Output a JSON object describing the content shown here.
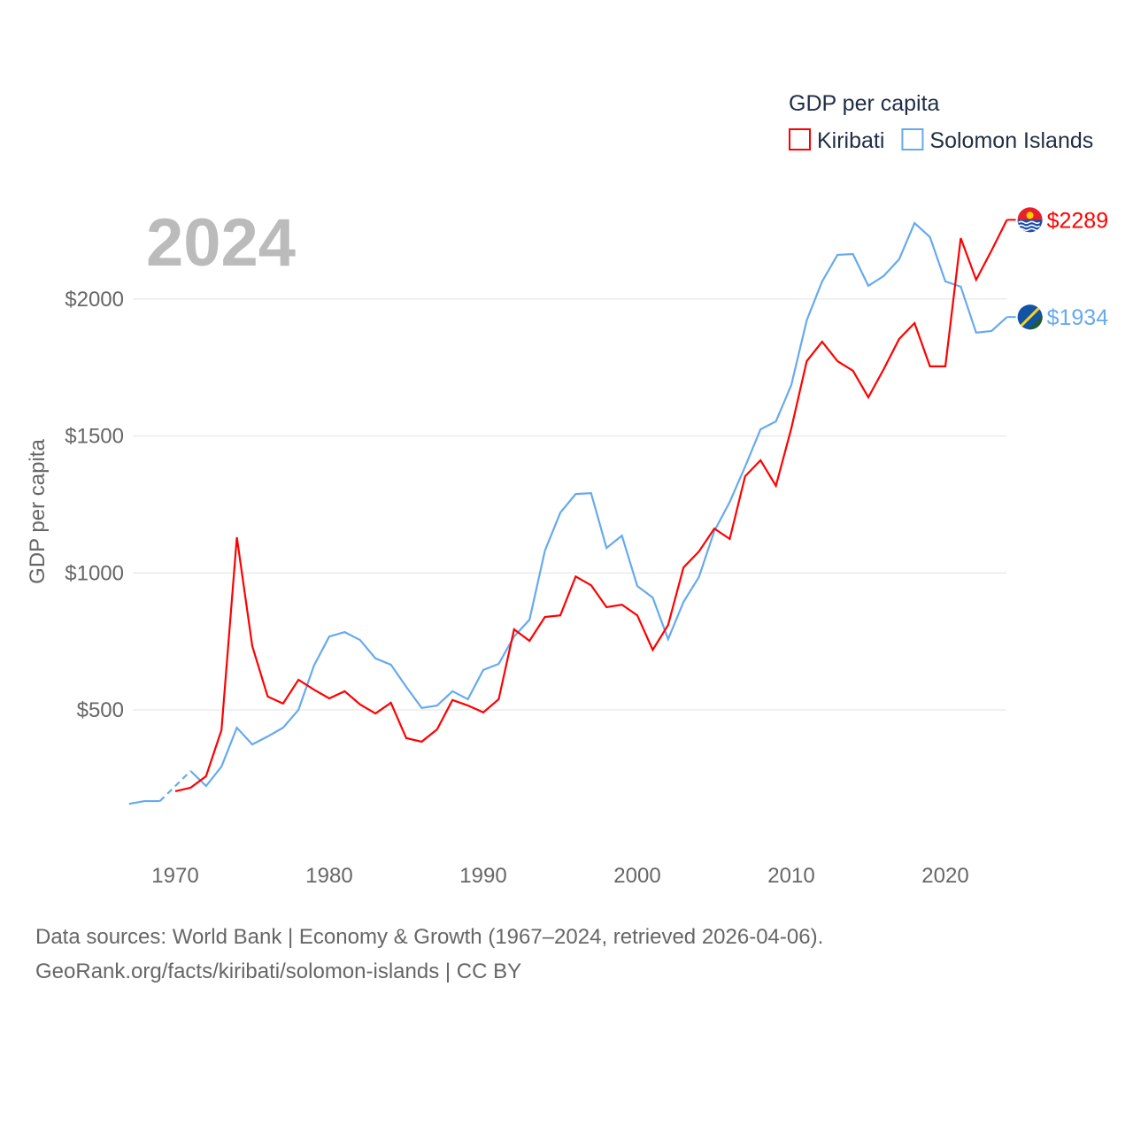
{
  "chart_data": {
    "type": "line",
    "title": "GDP per capita",
    "ylabel": "GDP per capita",
    "xlabel": "",
    "year_label": "2024",
    "xlim": [
      1967,
      2024
    ],
    "ylim": [
      0,
      2300
    ],
    "x_ticks": [
      1970,
      1980,
      1990,
      2000,
      2010,
      2020
    ],
    "x_tick_labels": [
      "1970",
      "1980",
      "1990",
      "2000",
      "2010",
      "2020"
    ],
    "y_ticks": [
      500,
      1000,
      1500,
      2000
    ],
    "y_tick_labels": [
      "$500",
      "$1000",
      "$1500",
      "$2000"
    ],
    "grid": true,
    "legend_position": "top-right",
    "series": [
      {
        "name": "Kiribati",
        "color": "#ff0000",
        "end_label": "$2289",
        "start_year": 1970,
        "values": [
          203,
          216,
          258,
          426,
          1130,
          733,
          549,
          523,
          610,
          574,
          542,
          568,
          520,
          487,
          526,
          397,
          384,
          429,
          536,
          516,
          491,
          539,
          794,
          752,
          839,
          845,
          987,
          955,
          875,
          884,
          845,
          719,
          810,
          1020,
          1078,
          1162,
          1124,
          1353,
          1411,
          1318,
          1528,
          1773,
          1844,
          1773,
          1738,
          1641,
          1744,
          1854,
          1912,
          1754,
          1754,
          2222,
          2070,
          2177,
          2289
        ]
      },
      {
        "name": "Solomon Islands",
        "color": "#66aaee",
        "end_label": "$1934",
        "start_year": 1967,
        "dashed_years": [
          1969,
          1971
        ],
        "values": [
          157,
          167,
          167,
          222,
          277,
          222,
          293,
          435,
          374,
          403,
          435,
          500,
          661,
          768,
          784,
          755,
          688,
          665,
          584,
          507,
          516,
          568,
          539,
          646,
          668,
          768,
          829,
          1081,
          1220,
          1288,
          1291,
          1091,
          1136,
          952,
          910,
          758,
          894,
          985,
          1153,
          1259,
          1388,
          1524,
          1553,
          1686,
          1922,
          2064,
          2161,
          2164,
          2048,
          2084,
          2145,
          2277,
          2226,
          2064,
          2045,
          1877,
          1883,
          1934
        ]
      }
    ]
  },
  "footer": {
    "line1": "Data sources: World Bank | Economy & Growth (1967–2024, retrieved 2026-04-06).",
    "line2": "GeoRank.org/facts/kiribati/solomon-islands | CC BY"
  }
}
